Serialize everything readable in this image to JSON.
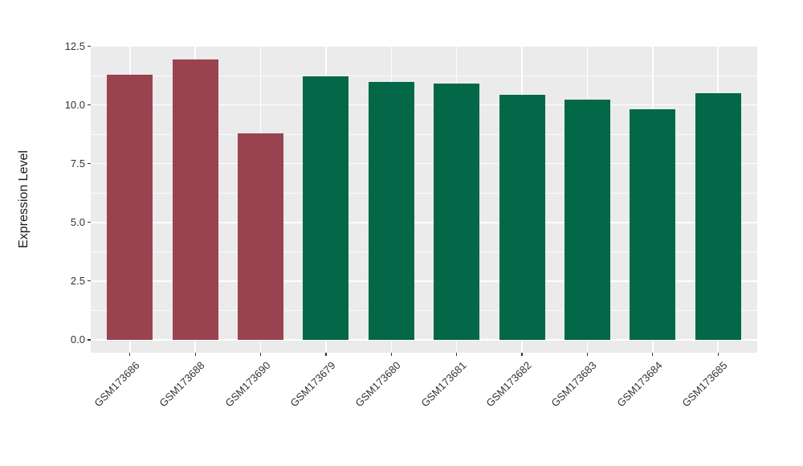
{
  "chart_data": {
    "type": "bar",
    "title": "",
    "xlabel": "",
    "ylabel": "Expression Level",
    "categories": [
      "GSM173686",
      "GSM173688",
      "GSM173690",
      "GSM173679",
      "GSM173680",
      "GSM173681",
      "GSM173682",
      "GSM173683",
      "GSM173684",
      "GSM173685"
    ],
    "values": [
      11.3,
      11.95,
      8.78,
      11.23,
      10.97,
      10.9,
      10.43,
      10.24,
      9.83,
      10.51
    ],
    "groups": [
      "group1",
      "group1",
      "group1",
      "group2",
      "group2",
      "group2",
      "group2",
      "group2",
      "group2",
      "group2"
    ],
    "group_colors": {
      "group1": "#9A4350",
      "group2": "#026847"
    },
    "y_tick_labels": [
      "0.0",
      "2.5",
      "5.0",
      "7.5",
      "10.0",
      "12.5"
    ],
    "y_tick_values": [
      0,
      2.5,
      5,
      7.5,
      10,
      12.5
    ],
    "y_minor_values": [
      1.25,
      3.75,
      6.25,
      8.75,
      11.25
    ],
    "ylim": [
      -0.55,
      12.52
    ],
    "bar_rel_width": 0.7,
    "x_expand": 0.6,
    "x_tick_angle": -45,
    "grid": true,
    "legend_position": "none",
    "panel_bg": "#EBEBEB",
    "grid_color": "#FFFFFF",
    "axis_text_color": "#333333"
  }
}
